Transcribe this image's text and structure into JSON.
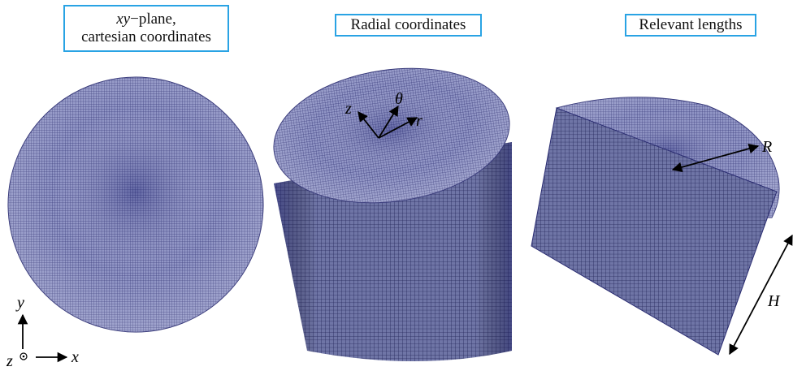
{
  "panels": [
    {
      "title_html": "xy",
      "title_rest": "−plane,",
      "title_line2": "cartesian coordinates"
    },
    {
      "title": "Radial coordinates"
    },
    {
      "title": "Relevant lengths"
    }
  ],
  "axes_labels": {
    "x": "x",
    "y": "y",
    "z": "z"
  },
  "radial_labels": {
    "z": "z",
    "theta": "θ",
    "r": "r"
  },
  "lengths": {
    "R": "R",
    "H": "H"
  },
  "colors": {
    "mesh_fill": "#7c80b4",
    "mesh_line": "#2a2c6e",
    "frame": "#29a3e4"
  }
}
